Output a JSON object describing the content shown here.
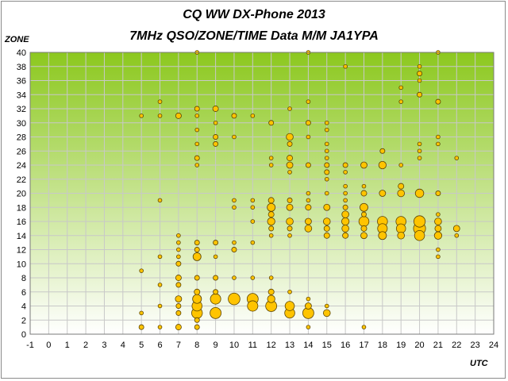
{
  "chart_data": {
    "type": "scatter",
    "title": "CQ WW DX-Phone 2013",
    "subtitle": "7MHz QSO/ZONE/TIME Data M/M JA1YPA",
    "xlabel": "UTC",
    "ylabel": "ZONE",
    "xlim": [
      -1,
      24
    ],
    "ylim": [
      0,
      40
    ],
    "xticks": [
      -1,
      0,
      1,
      2,
      3,
      4,
      5,
      6,
      7,
      8,
      9,
      10,
      11,
      12,
      13,
      14,
      15,
      16,
      17,
      18,
      19,
      20,
      21,
      22,
      23,
      24
    ],
    "yticks": [
      0,
      2,
      4,
      6,
      8,
      10,
      12,
      14,
      16,
      18,
      20,
      22,
      24,
      26,
      28,
      30,
      32,
      34,
      36,
      38,
      40
    ],
    "grid": true,
    "legend": "none",
    "colors": {
      "marker_fill": "#ffc400",
      "marker_edge": "#5a4400",
      "plot_bg_top": "#8cc81e",
      "plot_bg_bottom": "#ffffff",
      "grid": "#c8c8c8"
    },
    "marker_encoding": "bubble size = number of QSOs",
    "points": [
      [
        5,
        31,
        1
      ],
      [
        5,
        9,
        1
      ],
      [
        5,
        3,
        1
      ],
      [
        5,
        1,
        2
      ],
      [
        6,
        33,
        1
      ],
      [
        6,
        31,
        1
      ],
      [
        6,
        19,
        1
      ],
      [
        6,
        11,
        1
      ],
      [
        6,
        7,
        1
      ],
      [
        6,
        4,
        1
      ],
      [
        6,
        1,
        1
      ],
      [
        7,
        31,
        3
      ],
      [
        7,
        14,
        1
      ],
      [
        7,
        13,
        1
      ],
      [
        7,
        12,
        1
      ],
      [
        7,
        11,
        1
      ],
      [
        7,
        10,
        2
      ],
      [
        7,
        8,
        3
      ],
      [
        7,
        7,
        2
      ],
      [
        7,
        5,
        4
      ],
      [
        7,
        4,
        2
      ],
      [
        7,
        3,
        2
      ],
      [
        7,
        1,
        3
      ],
      [
        8,
        40,
        1
      ],
      [
        8,
        32,
        2
      ],
      [
        8,
        31,
        1
      ],
      [
        8,
        29,
        1
      ],
      [
        8,
        27,
        1
      ],
      [
        8,
        25,
        2
      ],
      [
        8,
        24,
        1
      ],
      [
        8,
        13,
        2
      ],
      [
        8,
        12,
        2
      ],
      [
        8,
        11,
        7
      ],
      [
        8,
        8,
        2
      ],
      [
        8,
        6,
        3
      ],
      [
        8,
        5,
        9
      ],
      [
        8,
        4,
        12
      ],
      [
        8,
        3,
        14
      ],
      [
        8,
        2,
        2
      ],
      [
        8,
        1,
        2
      ],
      [
        9,
        32,
        3
      ],
      [
        9,
        30,
        1
      ],
      [
        9,
        28,
        2
      ],
      [
        9,
        27,
        2
      ],
      [
        9,
        13,
        2
      ],
      [
        9,
        11,
        1
      ],
      [
        9,
        8,
        2
      ],
      [
        9,
        6,
        2
      ],
      [
        9,
        5,
        13
      ],
      [
        9,
        3,
        15
      ],
      [
        10,
        31,
        2
      ],
      [
        10,
        28,
        1
      ],
      [
        10,
        19,
        1
      ],
      [
        10,
        18,
        1
      ],
      [
        10,
        13,
        1
      ],
      [
        10,
        12,
        2
      ],
      [
        10,
        8,
        1
      ],
      [
        10,
        5,
        17
      ],
      [
        11,
        31,
        1
      ],
      [
        11,
        19,
        1
      ],
      [
        11,
        18,
        1
      ],
      [
        11,
        16,
        1
      ],
      [
        11,
        13,
        1
      ],
      [
        11,
        8,
        1
      ],
      [
        11,
        5,
        15
      ],
      [
        11,
        4,
        13
      ],
      [
        12,
        30,
        2
      ],
      [
        12,
        25,
        1
      ],
      [
        12,
        24,
        1
      ],
      [
        12,
        19,
        3
      ],
      [
        12,
        18,
        7
      ],
      [
        12,
        17,
        3
      ],
      [
        12,
        16,
        6
      ],
      [
        12,
        15,
        2
      ],
      [
        12,
        14,
        1
      ],
      [
        12,
        8,
        1
      ],
      [
        12,
        6,
        3
      ],
      [
        12,
        5,
        6
      ],
      [
        12,
        4,
        15
      ],
      [
        13,
        32,
        1
      ],
      [
        13,
        28,
        5
      ],
      [
        13,
        27,
        2
      ],
      [
        13,
        25,
        3
      ],
      [
        13,
        24,
        4
      ],
      [
        13,
        23,
        1
      ],
      [
        13,
        19,
        2
      ],
      [
        13,
        18,
        4
      ],
      [
        13,
        16,
        5
      ],
      [
        13,
        15,
        2
      ],
      [
        13,
        14,
        1
      ],
      [
        13,
        6,
        1
      ],
      [
        13,
        4,
        10
      ],
      [
        13,
        3,
        12
      ],
      [
        14,
        40,
        1
      ],
      [
        14,
        33,
        1
      ],
      [
        14,
        30,
        2
      ],
      [
        14,
        28,
        1
      ],
      [
        14,
        24,
        2
      ],
      [
        14,
        20,
        1
      ],
      [
        14,
        19,
        1
      ],
      [
        14,
        18,
        3
      ],
      [
        14,
        16,
        4
      ],
      [
        14,
        15,
        5
      ],
      [
        14,
        5,
        1
      ],
      [
        14,
        4,
        4
      ],
      [
        14,
        3,
        15
      ],
      [
        14,
        1,
        1
      ],
      [
        15,
        30,
        1
      ],
      [
        15,
        29,
        1
      ],
      [
        15,
        27,
        1
      ],
      [
        15,
        26,
        1
      ],
      [
        15,
        25,
        1
      ],
      [
        15,
        24,
        2
      ],
      [
        15,
        23,
        2
      ],
      [
        15,
        22,
        1
      ],
      [
        15,
        20,
        1
      ],
      [
        15,
        18,
        4
      ],
      [
        15,
        16,
        5
      ],
      [
        15,
        15,
        3
      ],
      [
        15,
        14,
        3
      ],
      [
        15,
        4,
        1
      ],
      [
        15,
        3,
        5
      ],
      [
        16,
        38,
        1
      ],
      [
        16,
        24,
        2
      ],
      [
        16,
        23,
        1
      ],
      [
        16,
        21,
        1
      ],
      [
        16,
        20,
        1
      ],
      [
        16,
        19,
        1
      ],
      [
        16,
        18,
        2
      ],
      [
        16,
        17,
        5
      ],
      [
        16,
        16,
        6
      ],
      [
        16,
        15,
        5
      ],
      [
        16,
        14,
        3
      ],
      [
        17,
        24,
        4
      ],
      [
        17,
        21,
        1
      ],
      [
        17,
        20,
        3
      ],
      [
        17,
        18,
        7
      ],
      [
        17,
        17,
        2
      ],
      [
        17,
        16,
        12
      ],
      [
        17,
        15,
        3
      ],
      [
        17,
        14,
        4
      ],
      [
        17,
        1,
        1
      ],
      [
        18,
        26,
        2
      ],
      [
        18,
        24,
        6
      ],
      [
        18,
        20,
        4
      ],
      [
        18,
        16,
        12
      ],
      [
        18,
        15,
        11
      ],
      [
        18,
        14,
        7
      ],
      [
        19,
        35,
        1
      ],
      [
        19,
        33,
        1
      ],
      [
        19,
        24,
        1
      ],
      [
        19,
        21,
        3
      ],
      [
        19,
        20,
        5
      ],
      [
        19,
        16,
        12
      ],
      [
        19,
        15,
        10
      ],
      [
        19,
        14,
        5
      ],
      [
        20,
        38,
        1
      ],
      [
        20,
        37,
        2
      ],
      [
        20,
        36,
        1
      ],
      [
        20,
        34,
        2
      ],
      [
        20,
        27,
        1
      ],
      [
        20,
        26,
        1
      ],
      [
        20,
        25,
        1
      ],
      [
        20,
        20,
        8
      ],
      [
        20,
        16,
        16
      ],
      [
        20,
        15,
        18
      ],
      [
        20,
        14,
        12
      ],
      [
        21,
        40,
        1
      ],
      [
        21,
        33,
        2
      ],
      [
        21,
        28,
        1
      ],
      [
        21,
        27,
        1
      ],
      [
        21,
        20,
        2
      ],
      [
        21,
        17,
        1
      ],
      [
        21,
        16,
        5
      ],
      [
        21,
        15,
        4
      ],
      [
        21,
        14,
        6
      ],
      [
        21,
        12,
        1
      ],
      [
        21,
        11,
        1
      ],
      [
        22,
        25,
        1
      ],
      [
        22,
        15,
        4
      ],
      [
        22,
        14,
        1
      ]
    ]
  }
}
